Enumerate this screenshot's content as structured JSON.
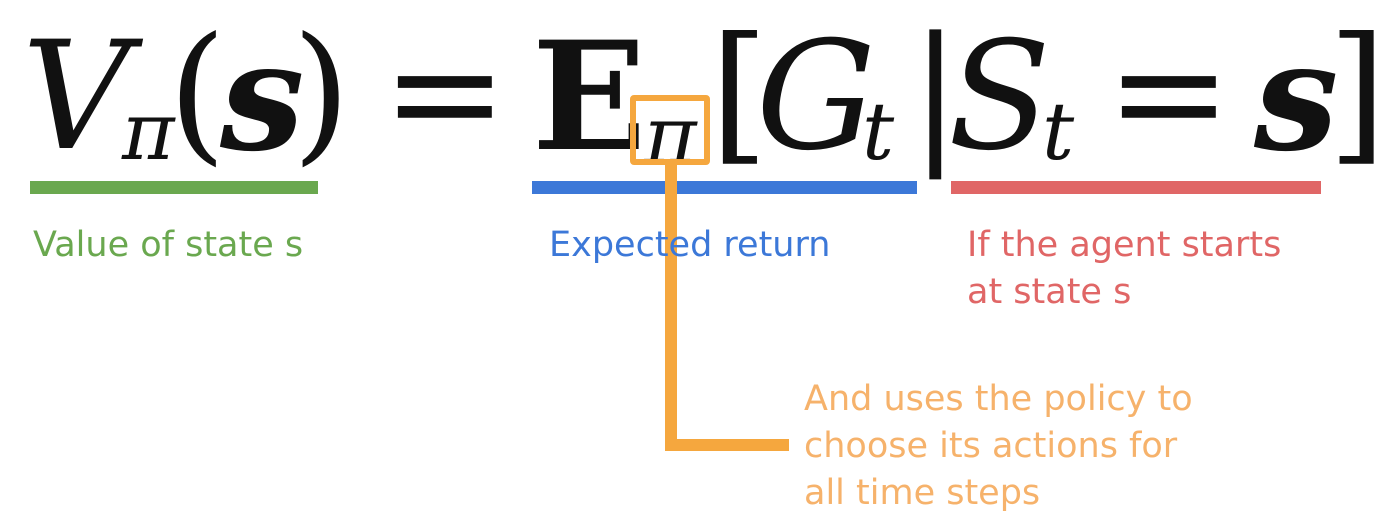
{
  "formula": {
    "lhs_symbol": "V",
    "lhs_subscript": "π",
    "lhs_open": "(",
    "lhs_arg": "s",
    "lhs_close": ")",
    "equals": "=",
    "expectation": "E",
    "expectation_subscript": "π",
    "open_bracket": "[",
    "return_symbol": "G",
    "return_subscript": "t",
    "given_bar": "|",
    "state_symbol": "S",
    "state_subscript": "t",
    "inner_equals": "=",
    "state_value": "s",
    "close_bracket": "]"
  },
  "annotations": {
    "value": {
      "text": "Value of state s",
      "color": "#6aa84f"
    },
    "expected": {
      "text": "Expected return",
      "color": "#3c78d8"
    },
    "condition": {
      "line1": "If the agent starts",
      "line2": "at state s",
      "color": "#e06666"
    },
    "policy": {
      "line1": "And uses the policy to",
      "line2": "choose its actions for",
      "line3": "all time steps",
      "color": "#f6b26b"
    }
  }
}
